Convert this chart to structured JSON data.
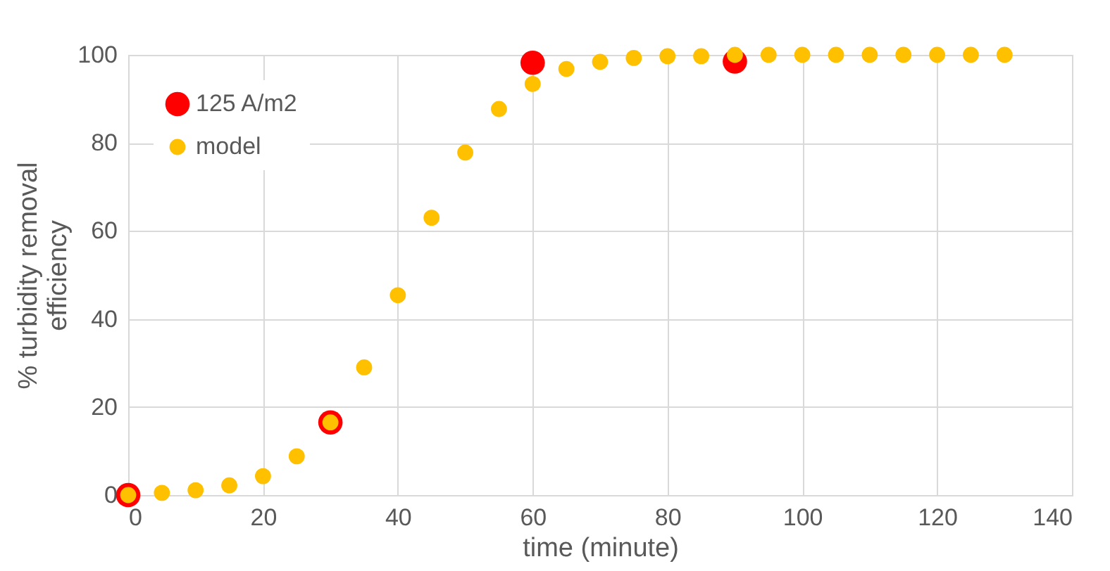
{
  "chart_data": {
    "type": "scatter",
    "xlabel": "time (minute)",
    "ylabel": "% turbidity removal efficiency",
    "xlim": [
      0,
      140
    ],
    "xticks": [
      0,
      20,
      40,
      60,
      80,
      100,
      120,
      140
    ],
    "ylim": [
      0,
      100
    ],
    "yticks": [
      0,
      20,
      40,
      60,
      80,
      100
    ],
    "grid": true,
    "legend": "top left",
    "marker": "circle",
    "series": [
      {
        "name": "125 A/m2",
        "color": "#ff0000",
        "x": [
          0,
          30,
          60,
          90
        ],
        "values": [
          0,
          16.5,
          98.2,
          98.5
        ]
      },
      {
        "name": "model",
        "color": "#ffc000",
        "x": [
          0,
          5,
          10,
          15,
          20,
          25,
          30,
          35,
          40,
          45,
          50,
          55,
          60,
          65,
          70,
          75,
          80,
          85,
          90,
          95,
          100,
          105,
          110,
          115,
          120,
          125,
          130
        ],
        "values": [
          0,
          0.5,
          1.1,
          2.2,
          4.3,
          8.8,
          16.5,
          29,
          45.4,
          63,
          77.8,
          87.7,
          93.4,
          96.8,
          98.4,
          99.3,
          99.7,
          99.7,
          100,
          100,
          100,
          100,
          100,
          100,
          100,
          100,
          100
        ]
      }
    ]
  }
}
